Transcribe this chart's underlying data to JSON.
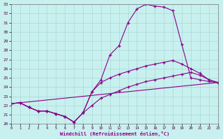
{
  "xlabel": "Windchill (Refroidissement éolien,°C)",
  "xlim": [
    0,
    23
  ],
  "ylim": [
    20,
    33
  ],
  "xticks": [
    0,
    1,
    2,
    3,
    4,
    5,
    6,
    7,
    8,
    9,
    10,
    11,
    12,
    13,
    14,
    15,
    16,
    17,
    18,
    19,
    20,
    21,
    22,
    23
  ],
  "yticks": [
    20,
    21,
    22,
    23,
    24,
    25,
    26,
    27,
    28,
    29,
    30,
    31,
    32,
    33
  ],
  "bg_color": "#c8f0ee",
  "grid_color": "#a8d8d8",
  "line_color": "#880088",
  "line1_x": [
    0,
    1,
    2,
    3,
    4,
    5,
    6,
    7,
    8,
    9,
    10,
    11,
    12,
    13,
    14,
    15,
    16,
    17,
    18,
    19,
    20,
    21,
    22,
    23
  ],
  "line1_y": [
    22.2,
    22.3,
    21.8,
    21.4,
    21.4,
    21.1,
    20.8,
    20.2,
    21.2,
    23.5,
    24.8,
    27.5,
    28.5,
    31.0,
    32.5,
    33.0,
    32.8,
    32.7,
    32.3,
    28.6,
    25.0,
    24.8,
    24.6,
    24.5
  ],
  "line2_x": [
    0,
    1,
    2,
    3,
    4,
    5,
    6,
    7,
    8,
    9,
    10,
    11,
    12,
    13,
    14,
    15,
    16,
    17,
    18,
    19,
    20,
    21,
    22,
    23
  ],
  "line2_y": [
    22.2,
    22.3,
    21.8,
    21.4,
    21.4,
    21.1,
    20.8,
    20.2,
    21.2,
    23.5,
    24.5,
    25.0,
    25.4,
    25.7,
    26.0,
    26.3,
    26.5,
    26.7,
    26.9,
    26.5,
    26.0,
    25.5,
    24.8,
    24.5
  ],
  "line3_x": [
    0,
    23
  ],
  "line3_y": [
    22.2,
    24.5
  ],
  "line4_x": [
    0,
    1,
    2,
    3,
    4,
    5,
    6,
    7,
    8,
    9,
    10,
    11,
    12,
    13,
    14,
    15,
    16,
    17,
    18,
    19,
    20,
    21,
    22,
    23
  ],
  "line4_y": [
    22.2,
    22.3,
    21.8,
    21.4,
    21.4,
    21.1,
    20.8,
    20.2,
    21.2,
    22.0,
    22.8,
    23.2,
    23.6,
    24.0,
    24.3,
    24.6,
    24.8,
    25.0,
    25.2,
    25.4,
    25.6,
    25.3,
    24.8,
    24.5
  ]
}
